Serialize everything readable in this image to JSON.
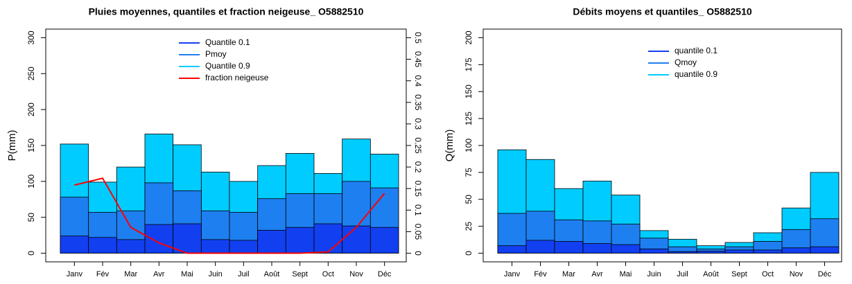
{
  "chart_data": [
    {
      "type": "bar",
      "title": "Pluies moyennes, quantiles et fraction neigeuse_ O5882510",
      "ylabel": "P(mm)",
      "categories": [
        "Janv",
        "Fév",
        "Mar",
        "Avr",
        "Mai",
        "Juin",
        "Juil",
        "Août",
        "Sept",
        "Oct",
        "Nov",
        "Déc"
      ],
      "series": [
        {
          "name": "Quantile 0.1",
          "color": "#1240f0",
          "values": [
            24,
            22,
            19,
            40,
            41,
            19,
            18,
            32,
            36,
            41,
            38,
            36
          ]
        },
        {
          "name": "Pmoy",
          "color": "#1e7ff0",
          "values": [
            78,
            57,
            59,
            98,
            87,
            59,
            57,
            76,
            83,
            83,
            100,
            91
          ]
        },
        {
          "name": "Quantile 0.9",
          "color": "#00ccff",
          "values": [
            152,
            99,
            120,
            166,
            151,
            113,
            100,
            122,
            139,
            111,
            159,
            138
          ]
        },
        {
          "name": "fraction neigeuse",
          "color": "#ff0000",
          "type": "line",
          "axis": "y2",
          "values": [
            0.158,
            0.174,
            0.06,
            0.024,
            0,
            0,
            0,
            0,
            0,
            0.003,
            0.06,
            0.139
          ]
        }
      ],
      "ylim": [
        -12,
        312
      ],
      "yticks": [
        0,
        50,
        100,
        150,
        200,
        250,
        300
      ],
      "y2lim": [
        -0.02,
        0.52
      ],
      "y2ticks": [
        0,
        0.05,
        0.1,
        0.15,
        0.2,
        0.25,
        0.3,
        0.35,
        0.4,
        0.45,
        0.5
      ],
      "legend": "top"
    },
    {
      "type": "bar",
      "title": "Débits moyens et quantiles_ O5882510",
      "ylabel": "Q(mm)",
      "categories": [
        "Janv",
        "Fév",
        "Mar",
        "Avr",
        "Mai",
        "Juin",
        "Juil",
        "Août",
        "Sept",
        "Oct",
        "Nov",
        "Déc"
      ],
      "series": [
        {
          "name": "quantile 0.1",
          "color": "#1240f0",
          "values": [
            7,
            12,
            11,
            9,
            8,
            4,
            1.5,
            2,
            3,
            3,
            5,
            6
          ]
        },
        {
          "name": "Qmoy",
          "color": "#1e7ff0",
          "values": [
            37,
            39,
            31,
            30,
            27,
            14,
            6,
            4,
            6,
            11,
            22,
            32
          ]
        },
        {
          "name": "quantile 0.9",
          "color": "#00ccff",
          "values": [
            96,
            87,
            60,
            67,
            54,
            21,
            13,
            7,
            10,
            19,
            42,
            75
          ]
        }
      ],
      "ylim": [
        -8,
        208
      ],
      "yticks": [
        0,
        25,
        50,
        75,
        100,
        125,
        150,
        175,
        200
      ],
      "legend": "top"
    }
  ]
}
